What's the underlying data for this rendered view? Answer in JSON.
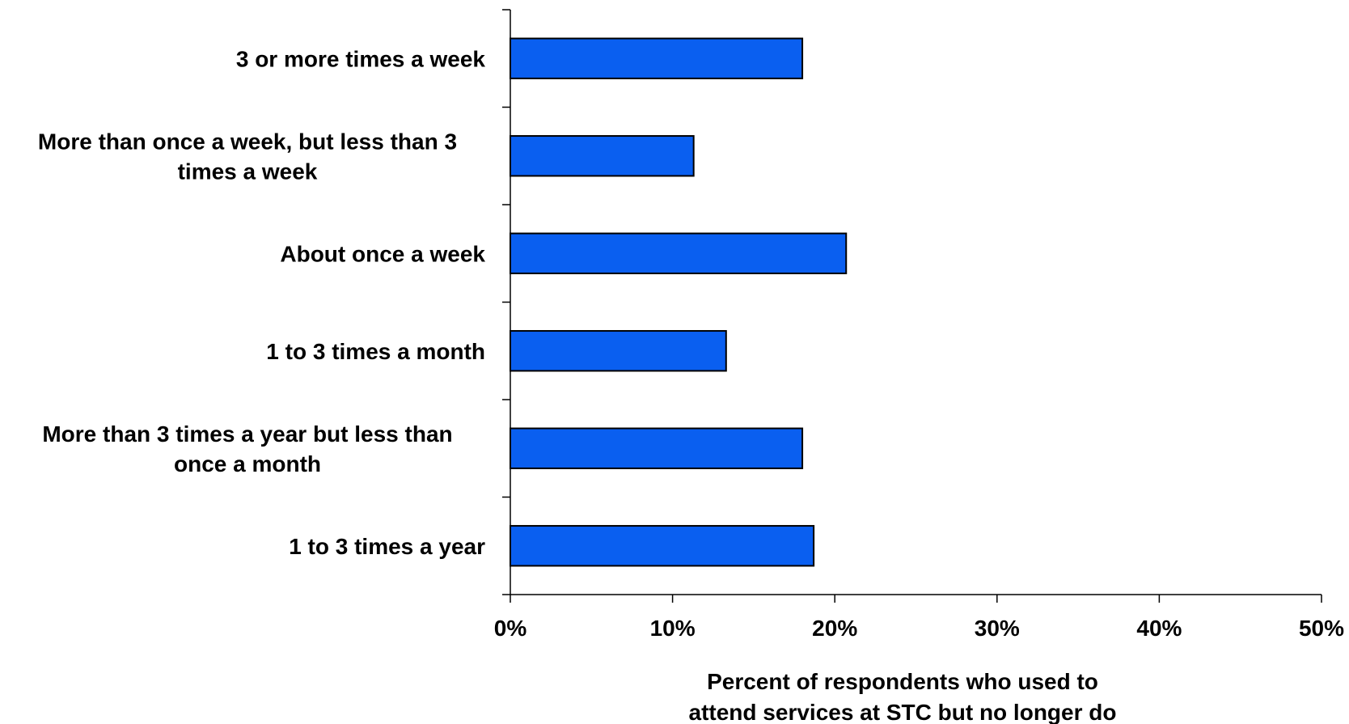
{
  "chart_data": {
    "type": "bar",
    "orientation": "horizontal",
    "categories": [
      [
        "3 or more times a week"
      ],
      [
        "More than once a week, but less than 3",
        "times a week"
      ],
      [
        "About once a week"
      ],
      [
        "1 to 3 times a month"
      ],
      [
        "More than 3 times a year but less than",
        "once a month"
      ],
      [
        "1 to 3 times a year"
      ]
    ],
    "values": [
      18,
      11.3,
      20.7,
      13.3,
      18,
      18.7
    ],
    "xlim": [
      0,
      50
    ],
    "xticks": [
      0,
      10,
      20,
      30,
      40,
      50
    ],
    "xtick_labels": [
      "0%",
      "10%",
      "20%",
      "30%",
      "40%",
      "50%"
    ],
    "xlabel": [
      "Percent of respondents who used to",
      "attend services at STC but no longer do"
    ],
    "ylabel": "",
    "title": "",
    "grid": false,
    "bar_color": "#0a5ff0",
    "bar_edge_color": "#000000"
  }
}
